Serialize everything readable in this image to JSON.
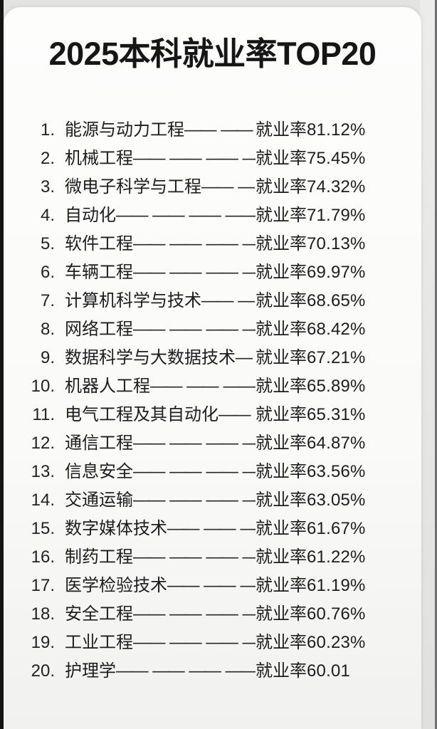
{
  "title": "2025本科就业率TOP20",
  "colors": {
    "card_background": "#fafaf8",
    "page_background": "#e3e3e1",
    "left_edge_bar": "#141414",
    "right_edge_line": "#6f6f6f",
    "text": "#1d1d1f"
  },
  "list": {
    "rate_label": "就业率",
    "rows": [
      {
        "rank": "1.",
        "name": "能源与动力工程",
        "dashes": "—— ——",
        "rate": "81.12%"
      },
      {
        "rank": "2.",
        "name": "机械工程",
        "dashes": "—— —— —— —",
        "rate": "75.45%"
      },
      {
        "rank": "3.",
        "name": "微电子科学与工程",
        "dashes": "—— —",
        "rate": "74.32%"
      },
      {
        "rank": "4.",
        "name": "自动化",
        "dashes": "—— —— —— ——",
        "rate": "71.79%"
      },
      {
        "rank": "5.",
        "name": "软件工程",
        "dashes": "—— —— —— —",
        "rate": "70.13%"
      },
      {
        "rank": "6.",
        "name": "车辆工程",
        "dashes": "—— —— —— —",
        "rate": "69.97%"
      },
      {
        "rank": "7.",
        "name": "计算机科学与技术",
        "dashes": "—— —",
        "rate": "68.65%"
      },
      {
        "rank": "8.",
        "name": "网络工程",
        "dashes": "—— —— —— —",
        "rate": "68.42%"
      },
      {
        "rank": "9.",
        "name": "数据科学与大数据技术",
        "dashes": "—",
        "rate": "67.21%"
      },
      {
        "rank": "10.",
        "name": "机器人工程",
        "dashes": "—— —— ——",
        "rate": "65.89%"
      },
      {
        "rank": "11.",
        "name": "电气工程及其自动化",
        "dashes": "——",
        "rate": "65.31%"
      },
      {
        "rank": "12.",
        "name": "通信工程",
        "dashes": "—— —— —— —",
        "rate": "64.87%"
      },
      {
        "rank": "13.",
        "name": "信息安全",
        "dashes": "—— —— —— —",
        "rate": "63.56%"
      },
      {
        "rank": "14.",
        "name": "交通运输",
        "dashes": "—— —— —— —",
        "rate": "63.05%"
      },
      {
        "rank": "15.",
        "name": "数字媒体技术",
        "dashes": "—— —— —",
        "rate": "61.67%"
      },
      {
        "rank": "16.",
        "name": "制药工程",
        "dashes": "—— —— —— —",
        "rate": "61.22%"
      },
      {
        "rank": "17.",
        "name": "医学检验技术",
        "dashes": "—— —— —",
        "rate": "61.19%"
      },
      {
        "rank": "18.",
        "name": "安全工程",
        "dashes": "—— —— —— —",
        "rate": "60.76%"
      },
      {
        "rank": "19.",
        "name": "工业工程",
        "dashes": "—— —— —— —",
        "rate": "60.23%"
      },
      {
        "rank": "20.",
        "name": "护理学",
        "dashes": "—— —— —— ——",
        "rate": "60.01"
      }
    ]
  }
}
